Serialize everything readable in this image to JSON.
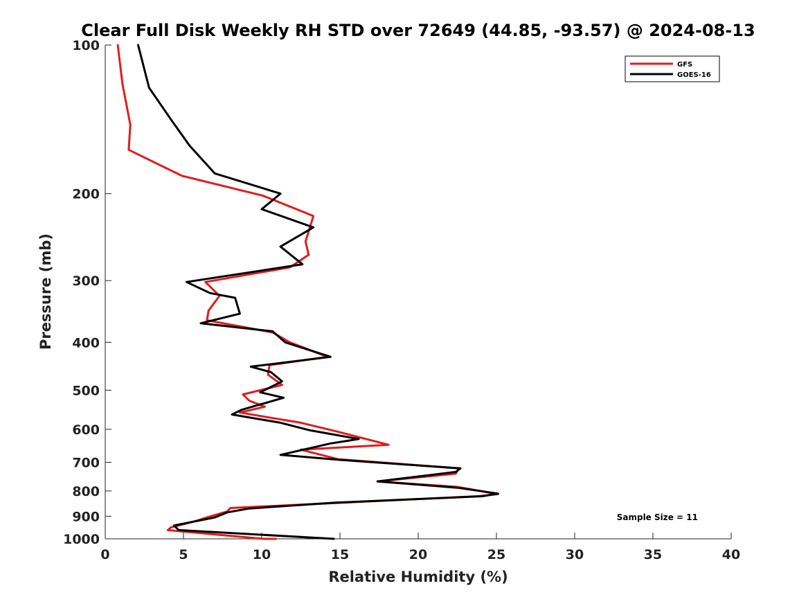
{
  "chart_data": {
    "type": "line",
    "title": "Clear Full Disk Weekly RH STD over 72649 (44.85, -93.57) @ 2024-08-13",
    "xlabel": "Relative Humidity (%)",
    "ylabel": "Pressure (mb)",
    "xlim": [
      0,
      40
    ],
    "ylim": [
      100,
      1000
    ],
    "yscale": "log",
    "y_reversed": true,
    "x_ticks": [
      "0",
      "5",
      "10",
      "15",
      "20",
      "25",
      "30",
      "35",
      "40"
    ],
    "y_ticks": [
      "100",
      "200",
      "300",
      "400",
      "500",
      "600",
      "700",
      "800",
      "900",
      "1000"
    ],
    "grid": false,
    "legend_position": "top-right",
    "annotation": "Sample Size = 11",
    "series": [
      {
        "name": "GFS",
        "color": "#e41a1c",
        "x": [
          0.8,
          1.1,
          1.6,
          1.5,
          4.9,
          10.1,
          13.3,
          12.8,
          13.0,
          11.8,
          6.4,
          7.3,
          6.6,
          6.5,
          10.7,
          11.8,
          14.2,
          10.5,
          10.4,
          11.3,
          8.8,
          9.2,
          10.2,
          8.6,
          12.5,
          14.7,
          18.1,
          12.5,
          14.9,
          22.6,
          22.4,
          17.4,
          22.5,
          25.1,
          23.8,
          8.0,
          7.8,
          6.5,
          5.8,
          4.2,
          4.0,
          10.1,
          10.9
        ],
        "y": [
          100,
          120,
          145,
          163,
          184,
          202,
          222,
          250,
          266,
          282,
          302,
          322,
          345,
          361,
          382,
          400,
          428,
          445,
          465,
          488,
          510,
          525,
          540,
          555,
          582,
          605,
          645,
          660,
          690,
          720,
          738,
          765,
          785,
          812,
          820,
          866,
          880,
          905,
          920,
          948,
          960,
          1000,
          1000
        ]
      },
      {
        "name": "GOES-16",
        "color": "#000000",
        "x": [
          2.1,
          2.8,
          4.3,
          5.4,
          7.0,
          11.2,
          10.0,
          13.3,
          11.2,
          12.6,
          5.2,
          6.7,
          8.3,
          8.6,
          6.1,
          10.7,
          11.5,
          14.4,
          9.3,
          10.6,
          11.3,
          9.9,
          11.4,
          8.7,
          8.1,
          11.2,
          13.1,
          16.2,
          14.4,
          11.2,
          15.0,
          22.7,
          22.4,
          17.4,
          22.5,
          25.1,
          24.1,
          14.7,
          9.2,
          7.8,
          7.0,
          4.4,
          4.7,
          14.6
        ],
        "y": [
          100,
          122,
          143,
          160,
          182,
          200,
          215,
          234,
          256,
          278,
          302,
          318,
          325,
          350,
          366,
          380,
          400,
          428,
          448,
          460,
          480,
          505,
          518,
          548,
          560,
          582,
          603,
          628,
          641,
          676,
          692,
          720,
          732,
          765,
          788,
          810,
          820,
          845,
          868,
          884,
          905,
          940,
          960,
          1000
        ]
      }
    ]
  }
}
